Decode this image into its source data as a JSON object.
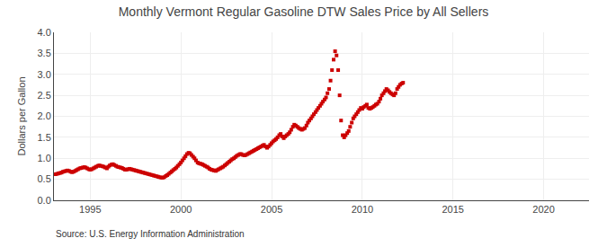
{
  "chart_data": {
    "type": "scatter",
    "title": "Monthly Vermont Regular Gasoline DTW Sales Price by All Sellers",
    "y_label": "Dollars per Gallon",
    "annotation": "Source: U.S. Energy Information Administration",
    "color": "#cc0000",
    "marker": "square",
    "grid": true,
    "xlim": [
      1993.0,
      2022.5
    ],
    "ylim": [
      0.0,
      4.0
    ],
    "xticks": [
      1995,
      2000,
      2005,
      2010,
      2015,
      2020
    ],
    "yticks": [
      {
        "value": 0.0,
        "label": "0.0"
      },
      0.5,
      {
        "value": 1.0,
        "label": "1.0"
      },
      1.5,
      {
        "value": 2.0,
        "label": "2.0"
      },
      2.5,
      {
        "value": 3.0,
        "label": "3.0"
      },
      3.5,
      {
        "value": 4.0,
        "label": "4.0"
      }
    ],
    "x": [
      1993.08,
      1993.17,
      1993.25,
      1993.33,
      1993.42,
      1993.5,
      1993.58,
      1993.67,
      1993.75,
      1993.83,
      1993.92,
      1994.0,
      1994.08,
      1994.17,
      1994.25,
      1994.33,
      1994.42,
      1994.5,
      1994.58,
      1994.67,
      1994.75,
      1994.83,
      1994.92,
      1995.0,
      1995.08,
      1995.17,
      1995.25,
      1995.33,
      1995.42,
      1995.5,
      1995.58,
      1995.67,
      1995.75,
      1995.83,
      1995.92,
      1996.0,
      1996.08,
      1996.17,
      1996.25,
      1996.33,
      1996.42,
      1996.5,
      1996.58,
      1996.67,
      1996.75,
      1996.83,
      1996.92,
      1997.0,
      1997.08,
      1997.17,
      1997.25,
      1997.33,
      1997.42,
      1997.5,
      1997.58,
      1997.67,
      1997.75,
      1997.83,
      1997.92,
      1998.0,
      1998.08,
      1998.17,
      1998.25,
      1998.33,
      1998.42,
      1998.5,
      1998.58,
      1998.67,
      1998.75,
      1998.83,
      1998.92,
      1999.0,
      1999.08,
      1999.17,
      1999.25,
      1999.33,
      1999.42,
      1999.5,
      1999.58,
      1999.67,
      1999.75,
      1999.83,
      1999.92,
      2000.0,
      2000.08,
      2000.17,
      2000.25,
      2000.33,
      2000.42,
      2000.5,
      2000.58,
      2000.67,
      2000.75,
      2000.83,
      2000.92,
      2001.0,
      2001.08,
      2001.17,
      2001.25,
      2001.33,
      2001.42,
      2001.5,
      2001.58,
      2001.67,
      2001.75,
      2001.83,
      2001.92,
      2002.0,
      2002.08,
      2002.17,
      2002.25,
      2002.33,
      2002.42,
      2002.5,
      2002.58,
      2002.67,
      2002.75,
      2002.83,
      2002.92,
      2003.0,
      2003.08,
      2003.17,
      2003.25,
      2003.33,
      2003.42,
      2003.5,
      2003.58,
      2003.67,
      2003.75,
      2003.83,
      2003.92,
      2004.0,
      2004.08,
      2004.17,
      2004.25,
      2004.33,
      2004.42,
      2004.5,
      2004.58,
      2004.67,
      2004.75,
      2004.83,
      2004.92,
      2005.0,
      2005.08,
      2005.17,
      2005.25,
      2005.33,
      2005.42,
      2005.5,
      2005.58,
      2005.67,
      2005.75,
      2005.83,
      2005.92,
      2006.0,
      2006.08,
      2006.17,
      2006.25,
      2006.33,
      2006.42,
      2006.5,
      2006.58,
      2006.67,
      2006.75,
      2006.83,
      2006.92,
      2007.0,
      2007.08,
      2007.17,
      2007.25,
      2007.33,
      2007.42,
      2007.5,
      2007.58,
      2007.67,
      2007.75,
      2007.83,
      2007.92,
      2008.0,
      2008.08,
      2008.17,
      2008.25,
      2008.33,
      2008.42,
      2008.5,
      2008.58,
      2008.67,
      2008.75,
      2008.83,
      2008.92,
      2009.0,
      2009.08,
      2009.17,
      2009.25,
      2009.33,
      2009.42,
      2009.5,
      2009.58,
      2009.67,
      2009.75,
      2009.83,
      2009.92,
      2010.0,
      2010.08,
      2010.17,
      2010.25,
      2010.33,
      2010.42,
      2010.5,
      2010.58,
      2010.67,
      2010.75,
      2010.83,
      2010.92,
      2011.0,
      2011.08,
      2011.17,
      2011.25,
      2011.33,
      2011.42,
      2011.5,
      2011.58,
      2011.67,
      2011.75,
      2011.83,
      2011.92,
      2012.0,
      2012.08,
      2012.17,
      2012.25
    ],
    "values": [
      0.62,
      0.63,
      0.64,
      0.65,
      0.66,
      0.68,
      0.69,
      0.7,
      0.71,
      0.7,
      0.68,
      0.67,
      0.68,
      0.7,
      0.72,
      0.74,
      0.76,
      0.77,
      0.78,
      0.79,
      0.78,
      0.76,
      0.74,
      0.73,
      0.74,
      0.76,
      0.78,
      0.8,
      0.82,
      0.83,
      0.82,
      0.81,
      0.8,
      0.78,
      0.76,
      0.8,
      0.83,
      0.85,
      0.86,
      0.84,
      0.82,
      0.8,
      0.79,
      0.78,
      0.77,
      0.75,
      0.73,
      0.73,
      0.74,
      0.75,
      0.74,
      0.73,
      0.72,
      0.71,
      0.7,
      0.69,
      0.68,
      0.67,
      0.66,
      0.65,
      0.64,
      0.63,
      0.62,
      0.61,
      0.6,
      0.59,
      0.58,
      0.57,
      0.56,
      0.55,
      0.54,
      0.54,
      0.55,
      0.58,
      0.6,
      0.63,
      0.66,
      0.69,
      0.72,
      0.75,
      0.78,
      0.82,
      0.86,
      0.9,
      0.95,
      1.0,
      1.05,
      1.1,
      1.13,
      1.12,
      1.08,
      1.04,
      1.0,
      0.95,
      0.9,
      0.88,
      0.87,
      0.86,
      0.84,
      0.82,
      0.8,
      0.78,
      0.75,
      0.73,
      0.72,
      0.71,
      0.7,
      0.72,
      0.74,
      0.76,
      0.78,
      0.8,
      0.83,
      0.86,
      0.89,
      0.92,
      0.95,
      0.98,
      1.0,
      1.03,
      1.06,
      1.08,
      1.1,
      1.1,
      1.08,
      1.07,
      1.08,
      1.1,
      1.12,
      1.14,
      1.16,
      1.18,
      1.2,
      1.22,
      1.24,
      1.26,
      1.28,
      1.3,
      1.32,
      1.28,
      1.25,
      1.28,
      1.32,
      1.36,
      1.4,
      1.43,
      1.46,
      1.5,
      1.55,
      1.58,
      1.52,
      1.48,
      1.52,
      1.55,
      1.58,
      1.62,
      1.68,
      1.75,
      1.8,
      1.78,
      1.75,
      1.72,
      1.7,
      1.68,
      1.7,
      1.72,
      1.78,
      1.85,
      1.9,
      1.95,
      2.0,
      2.05,
      2.1,
      2.15,
      2.2,
      2.25,
      2.3,
      2.35,
      2.4,
      2.45,
      2.55,
      2.65,
      2.85,
      3.1,
      3.35,
      3.55,
      3.45,
      3.1,
      2.5,
      1.9,
      1.55,
      1.5,
      1.55,
      1.6,
      1.65,
      1.75,
      1.85,
      1.95,
      2.0,
      2.05,
      2.1,
      2.15,
      2.2,
      2.18,
      2.22,
      2.25,
      2.28,
      2.2,
      2.18,
      2.2,
      2.22,
      2.25,
      2.28,
      2.3,
      2.35,
      2.42,
      2.5,
      2.55,
      2.6,
      2.65,
      2.62,
      2.58,
      2.55,
      2.52,
      2.5,
      2.55,
      2.65,
      2.7,
      2.75,
      2.78,
      2.8
    ]
  }
}
